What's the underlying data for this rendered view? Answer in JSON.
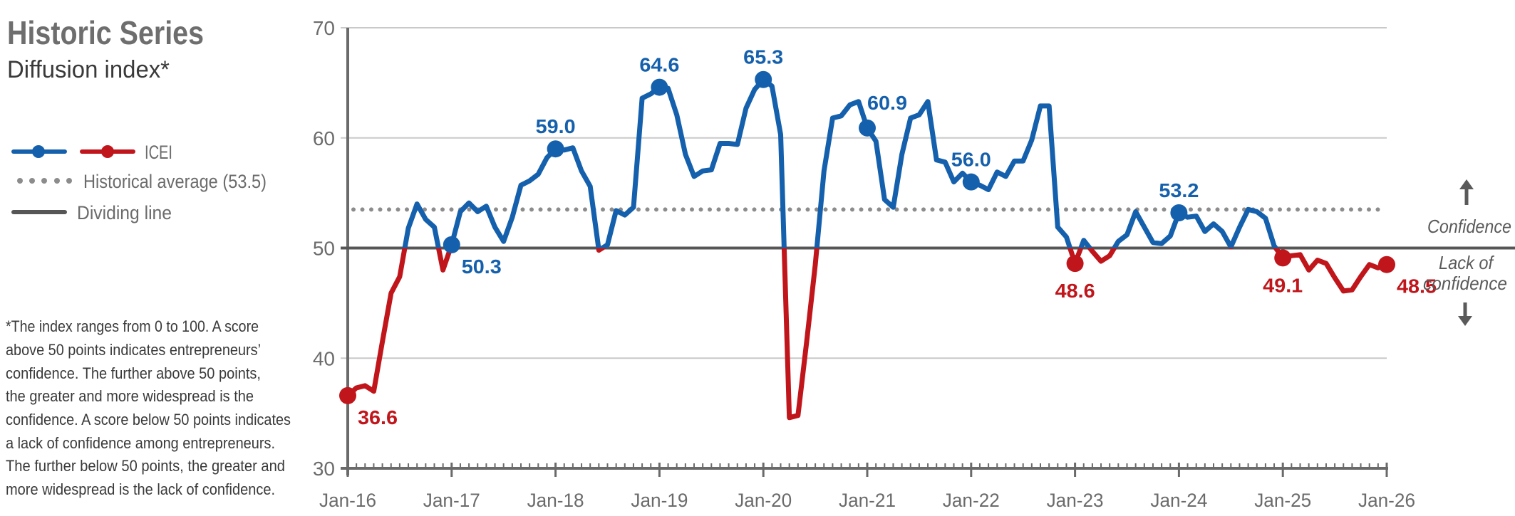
{
  "title": "Historic Series",
  "subtitle": "Diffusion index*",
  "legend": {
    "icei": "ICEI",
    "average": "Historical average (53.5)",
    "dividing": "Dividing line"
  },
  "footnote": [
    "*The index ranges from 0 to 100. A score",
    "above 50 points indicates entrepreneurs’",
    "confidence. The further above 50 points,",
    "the greater and more widespread is the",
    "confidence. A score below 50 points indicates",
    "a lack of confidence among entrepreneurs.",
    "The further below 50 points, the greater and",
    "more widespread is the lack of confidence."
  ],
  "zones": {
    "above": "Confidence",
    "below_line1": "Lack of",
    "below_line2": "confidence"
  },
  "colors": {
    "above": "#1560ac",
    "below": "#c0161b",
    "text": "#6b6b6b",
    "grid": "#c9c9c9",
    "dividing": "#565656",
    "average": "#8c8c8c"
  },
  "chart_data": {
    "type": "line",
    "title": "Historic Series",
    "subtitle": "Diffusion index*",
    "xlabel": "",
    "ylabel": "",
    "ylim": [
      30,
      70
    ],
    "yticks": [
      30,
      40,
      50,
      60,
      70
    ],
    "xticks": [
      "Jan-16",
      "Jan-17",
      "Jan-18",
      "Jan-19",
      "Jan-20",
      "Jan-21",
      "Jan-22",
      "Jan-23",
      "Jan-24",
      "Jan-25",
      "Jan-26"
    ],
    "x_start": "Jan-16",
    "x_step": "month",
    "grid": true,
    "dividing_line": 50,
    "historical_average": 53.5,
    "series": [
      {
        "name": "ICEI",
        "values": [
          36.6,
          37.3,
          37.5,
          37.0,
          41.5,
          45.9,
          47.4,
          51.8,
          54.0,
          52.6,
          51.9,
          48.0,
          50.3,
          53.3,
          54.1,
          53.3,
          53.8,
          51.9,
          50.6,
          52.8,
          55.7,
          56.1,
          56.7,
          58.2,
          59.0,
          58.9,
          59.1,
          57.0,
          55.6,
          49.8,
          50.3,
          53.4,
          53.0,
          53.7,
          63.6,
          64.0,
          64.6,
          64.5,
          62.1,
          58.5,
          56.5,
          57.0,
          57.1,
          59.5,
          59.5,
          59.4,
          62.7,
          64.4,
          65.3,
          64.7,
          60.3,
          34.6,
          34.8,
          41.5,
          48.5,
          57.0,
          61.8,
          62.0,
          63.0,
          63.3,
          60.9,
          59.7,
          54.4,
          53.7,
          58.5,
          61.8,
          62.1,
          63.3,
          58.0,
          57.8,
          56.0,
          56.8,
          56.0,
          55.7,
          55.3,
          56.9,
          56.5,
          57.9,
          57.9,
          59.8,
          62.9,
          62.9,
          51.9,
          51.0,
          48.6,
          50.7,
          49.7,
          48.8,
          49.3,
          50.6,
          51.2,
          53.3,
          51.9,
          50.5,
          50.4,
          51.1,
          53.2,
          52.8,
          52.9,
          51.5,
          52.2,
          51.5,
          50.1,
          51.9,
          53.5,
          53.3,
          52.7,
          50.2,
          49.1,
          49.3,
          49.4,
          48.0,
          48.9,
          48.6,
          47.3,
          46.1,
          46.2,
          47.4,
          48.5,
          48.2,
          48.5
        ]
      }
    ],
    "annotations": [
      {
        "index": 0,
        "label": "36.6",
        "pos": "below-right"
      },
      {
        "index": 12,
        "label": "50.3",
        "pos": "below-right"
      },
      {
        "index": 24,
        "label": "59.0",
        "pos": "above"
      },
      {
        "index": 36,
        "label": "64.6",
        "pos": "above"
      },
      {
        "index": 48,
        "label": "65.3",
        "pos": "above"
      },
      {
        "index": 60,
        "label": "60.9",
        "pos": "above-right"
      },
      {
        "index": 72,
        "label": "56.0",
        "pos": "above"
      },
      {
        "index": 84,
        "label": "48.6",
        "pos": "below"
      },
      {
        "index": 96,
        "label": "53.2",
        "pos": "above"
      },
      {
        "index": 108,
        "label": "49.1",
        "pos": "below"
      },
      {
        "index": 120,
        "label": "48.5",
        "pos": "below-right"
      }
    ]
  }
}
